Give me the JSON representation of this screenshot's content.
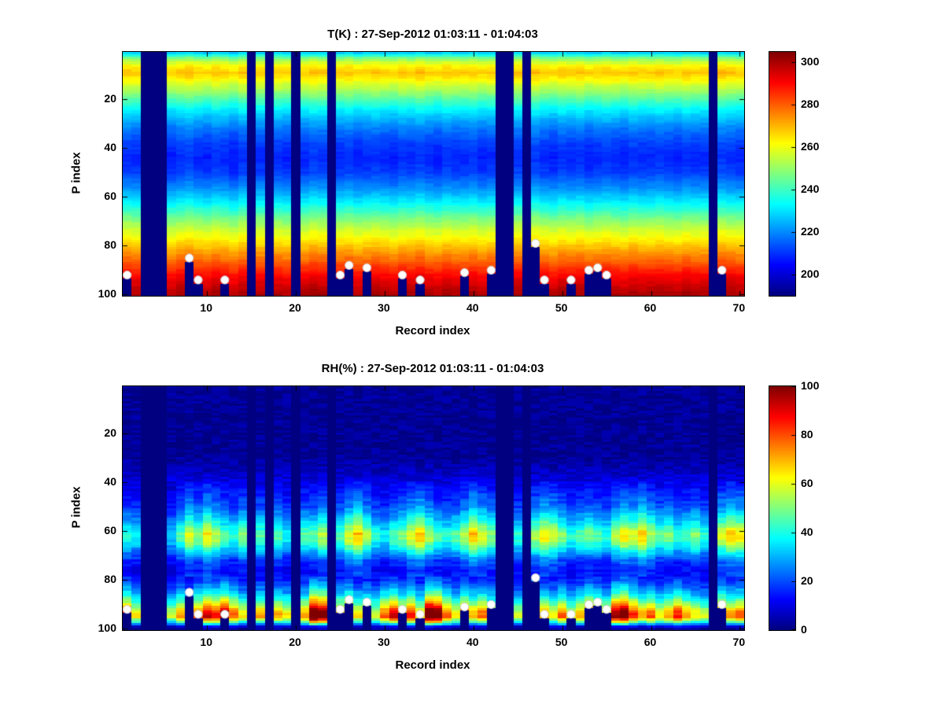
{
  "chart_data": [
    {
      "type": "heatmap",
      "id": "temperature",
      "title": "T(K) : 27-Sep-2012 01:03:11 - 01:04:03",
      "xlabel": "Record index",
      "ylabel": "P index",
      "x_ticks": [
        10,
        20,
        30,
        40,
        50,
        60,
        70
      ],
      "y_ticks": [
        20,
        40,
        60,
        80,
        100
      ],
      "x_range": [
        0.5,
        70.5
      ],
      "y_range": [
        0.5,
        100.5
      ],
      "y_axis_reversed": true,
      "n_records": 70,
      "n_levels": 100,
      "colormap": "jet",
      "colorbar": {
        "min": 190,
        "max": 305,
        "ticks": [
          200,
          220,
          240,
          260,
          280,
          300
        ]
      },
      "noise_amp": 3,
      "profile": [
        [
          1,
          228
        ],
        [
          3,
          246
        ],
        [
          6,
          262
        ],
        [
          9,
          268
        ],
        [
          12,
          262
        ],
        [
          16,
          252
        ],
        [
          20,
          242
        ],
        [
          26,
          228
        ],
        [
          32,
          218
        ],
        [
          38,
          211
        ],
        [
          44,
          208
        ],
        [
          50,
          211
        ],
        [
          56,
          220
        ],
        [
          62,
          231
        ],
        [
          68,
          245
        ],
        [
          74,
          257
        ],
        [
          80,
          268
        ],
        [
          86,
          279
        ],
        [
          92,
          290
        ],
        [
          97,
          297
        ],
        [
          100,
          300
        ]
      ],
      "record_offsets": [
        1,
        0,
        0,
        0,
        0,
        -1,
        1,
        2,
        0,
        -1,
        1,
        0,
        -2,
        1,
        0,
        0,
        1,
        0,
        -1,
        0,
        0,
        2,
        1,
        0,
        0,
        1,
        -1,
        0,
        1,
        0,
        -1,
        1,
        0,
        2,
        0,
        -1,
        1,
        0,
        0,
        1,
        -1,
        0,
        0,
        0,
        1,
        0,
        2,
        0,
        -1,
        1,
        0,
        1,
        -1,
        0,
        1,
        0,
        -1,
        1,
        0,
        0,
        1,
        0,
        -1,
        1,
        0,
        0,
        0,
        2,
        1,
        0
      ],
      "missing_records": [
        3,
        4,
        5,
        15,
        17,
        20,
        24,
        43,
        44,
        46,
        67
      ],
      "surface_dots": [
        [
          1,
          92
        ],
        [
          8,
          85
        ],
        [
          9,
          94
        ],
        [
          12,
          94
        ],
        [
          25,
          92
        ],
        [
          26,
          88
        ],
        [
          28,
          89
        ],
        [
          32,
          92
        ],
        [
          34,
          94
        ],
        [
          39,
          91
        ],
        [
          42,
          90
        ],
        [
          47,
          79
        ],
        [
          48,
          94
        ],
        [
          51,
          94
        ],
        [
          53,
          90
        ],
        [
          54,
          89
        ],
        [
          55,
          92
        ],
        [
          68,
          90
        ]
      ],
      "dot_color": "#ffffff"
    },
    {
      "type": "heatmap",
      "id": "relative-humidity",
      "title": "RH(%) : 27-Sep-2012 01:03:11 - 01:04:03",
      "xlabel": "Record index",
      "ylabel": "P index",
      "x_ticks": [
        10,
        20,
        30,
        40,
        50,
        60,
        70
      ],
      "y_ticks": [
        20,
        40,
        60,
        80,
        100
      ],
      "x_range": [
        0.5,
        70.5
      ],
      "y_range": [
        0.5,
        100.5
      ],
      "y_axis_reversed": true,
      "n_records": 70,
      "n_levels": 100,
      "colormap": "jet",
      "colorbar": {
        "min": 0,
        "max": 100,
        "ticks": [
          0,
          20,
          40,
          60,
          80,
          100
        ]
      },
      "noise_amp": 7,
      "mid_band": [
        40,
        78
      ],
      "profile": [
        [
          1,
          2
        ],
        [
          28,
          2
        ],
        [
          34,
          5
        ],
        [
          40,
          10
        ],
        [
          46,
          16
        ],
        [
          50,
          20
        ],
        [
          54,
          28
        ],
        [
          58,
          38
        ],
        [
          61,
          46
        ],
        [
          64,
          44
        ],
        [
          68,
          30
        ],
        [
          72,
          18
        ],
        [
          76,
          13
        ],
        [
          80,
          16
        ],
        [
          84,
          26
        ],
        [
          87,
          38
        ],
        [
          90,
          52
        ],
        [
          93,
          68
        ],
        [
          95,
          72
        ],
        [
          97,
          45
        ],
        [
          99,
          10
        ],
        [
          100,
          3
        ]
      ],
      "band_mod": [
        0.9,
        0.8,
        1.0,
        1.0,
        1.0,
        0.7,
        1.0,
        1.3,
        1.1,
        1.4,
        1.2,
        1.0,
        0.9,
        1.1,
        0.8,
        1.0,
        0.9,
        1.0,
        0.8,
        0.7,
        1.0,
        1.0,
        1.2,
        1.0,
        1.0,
        1.3,
        1.5,
        1.2,
        0.9,
        0.8,
        1.0,
        1.1,
        1.3,
        1.5,
        1.2,
        1.0,
        0.9,
        1.0,
        1.2,
        1.5,
        1.3,
        1.1,
        1.0,
        1.0,
        0.9,
        1.0,
        1.2,
        1.4,
        1.3,
        1.1,
        0.9,
        1.0,
        1.1,
        1.0,
        0.9,
        1.2,
        1.4,
        1.3,
        1.5,
        1.2,
        1.0,
        1.1,
        0.9,
        1.0,
        1.1,
        0.9,
        1.0,
        1.3,
        1.5,
        1.4
      ],
      "bottom_mod": [
        1.2,
        0.9,
        1.0,
        1.0,
        1.0,
        0.8,
        1.0,
        0.7,
        1.1,
        1.3,
        1.2,
        1.4,
        1.1,
        0.9,
        0.8,
        1.0,
        0.7,
        1.0,
        0.9,
        1.0,
        1.0,
        1.6,
        1.5,
        1.0,
        1.0,
        1.2,
        0.9,
        1.0,
        0.8,
        1.1,
        1.3,
        1.0,
        1.2,
        0.9,
        1.6,
        1.5,
        1.1,
        0.9,
        1.2,
        1.0,
        1.1,
        0.9,
        1.0,
        1.0,
        0.8,
        1.0,
        1.5,
        1.0,
        0.9,
        1.1,
        0.8,
        1.0,
        1.2,
        1.1,
        0.9,
        1.4,
        1.5,
        1.2,
        1.0,
        1.1,
        0.9,
        1.0,
        1.2,
        1.0,
        0.9,
        0.8,
        1.0,
        1.2,
        1.0,
        1.1
      ],
      "missing_records": [
        3,
        4,
        5,
        15,
        17,
        20,
        24,
        43,
        44,
        46,
        67
      ],
      "surface_dots": [
        [
          1,
          92
        ],
        [
          8,
          85
        ],
        [
          9,
          94
        ],
        [
          12,
          94
        ],
        [
          25,
          92
        ],
        [
          26,
          88
        ],
        [
          28,
          89
        ],
        [
          32,
          92
        ],
        [
          34,
          94
        ],
        [
          39,
          91
        ],
        [
          42,
          90
        ],
        [
          47,
          79
        ],
        [
          48,
          94
        ],
        [
          51,
          94
        ],
        [
          53,
          90
        ],
        [
          54,
          89
        ],
        [
          55,
          92
        ],
        [
          68,
          90
        ]
      ],
      "dot_color": "#ffffff"
    }
  ]
}
